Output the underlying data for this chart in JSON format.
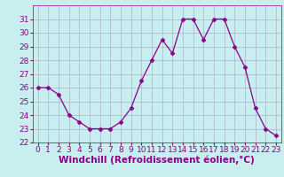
{
  "x": [
    0,
    1,
    2,
    3,
    4,
    5,
    6,
    7,
    8,
    9,
    10,
    11,
    12,
    13,
    14,
    15,
    16,
    17,
    18,
    19,
    20,
    21,
    22,
    23
  ],
  "y": [
    26,
    26,
    25.5,
    24,
    23.5,
    23,
    23,
    23,
    23.5,
    24.5,
    26.5,
    28,
    29.5,
    28.5,
    31,
    31,
    29.5,
    31,
    31,
    29,
    27.5,
    24.5,
    23,
    22.5
  ],
  "line_color": "#8b008b",
  "marker": "D",
  "marker_size": 2.5,
  "bg_color": "#c8eef0",
  "grid_color": "#b0b0cc",
  "xlabel": "Windchill (Refroidissement éolien,°C)",
  "xlabel_fontsize": 7.5,
  "tick_fontsize": 6.5,
  "ylim": [
    22,
    32
  ],
  "yticks": [
    22,
    23,
    24,
    25,
    26,
    27,
    28,
    29,
    30,
    31
  ],
  "xlim": [
    -0.5,
    23.5
  ],
  "xticks": [
    0,
    1,
    2,
    3,
    4,
    5,
    6,
    7,
    8,
    9,
    10,
    11,
    12,
    13,
    14,
    15,
    16,
    17,
    18,
    19,
    20,
    21,
    22,
    23
  ]
}
